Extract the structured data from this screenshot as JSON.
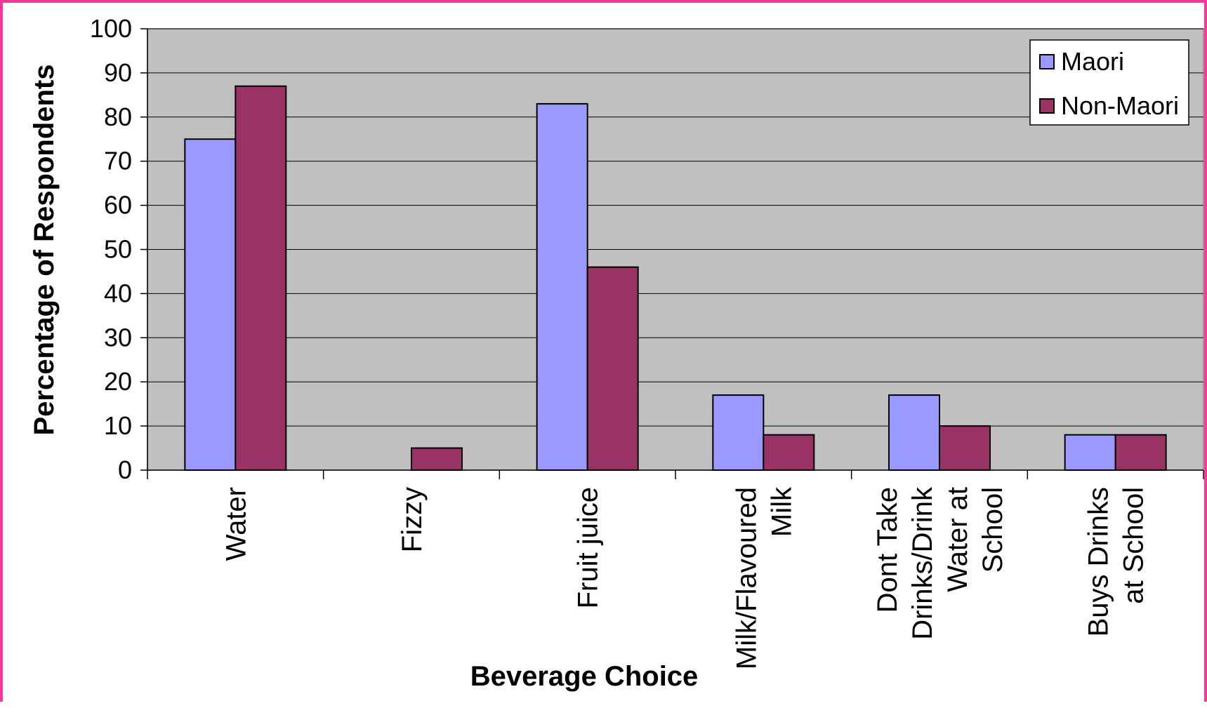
{
  "chart_data": {
    "type": "bar",
    "title": "",
    "xlabel": "Beverage Choice",
    "ylabel": "Percentage of Respondents",
    "ylim": [
      0,
      100
    ],
    "yticks": [
      0,
      10,
      20,
      30,
      40,
      50,
      60,
      70,
      80,
      90,
      100
    ],
    "grid": true,
    "legend_position": "top-right",
    "categories": [
      [
        "Water"
      ],
      [
        "Fizzy"
      ],
      [
        "Fruit juice"
      ],
      [
        "Milk/Flavoured",
        "Milk"
      ],
      [
        "Dont Take",
        "Drinks/Drink",
        "Water at",
        "School"
      ],
      [
        "Buys Drinks",
        "at School"
      ]
    ],
    "series": [
      {
        "name": "Maori",
        "color": "#9999ff",
        "values": [
          75,
          0,
          83,
          17,
          17,
          8
        ]
      },
      {
        "name": "Non-Maori",
        "color": "#993366",
        "values": [
          87,
          5,
          46,
          8,
          10,
          8
        ]
      }
    ],
    "colors": {
      "plot_background": "#c0c0c0",
      "frame_border": "#ff3399",
      "gridline": "#000000"
    }
  }
}
